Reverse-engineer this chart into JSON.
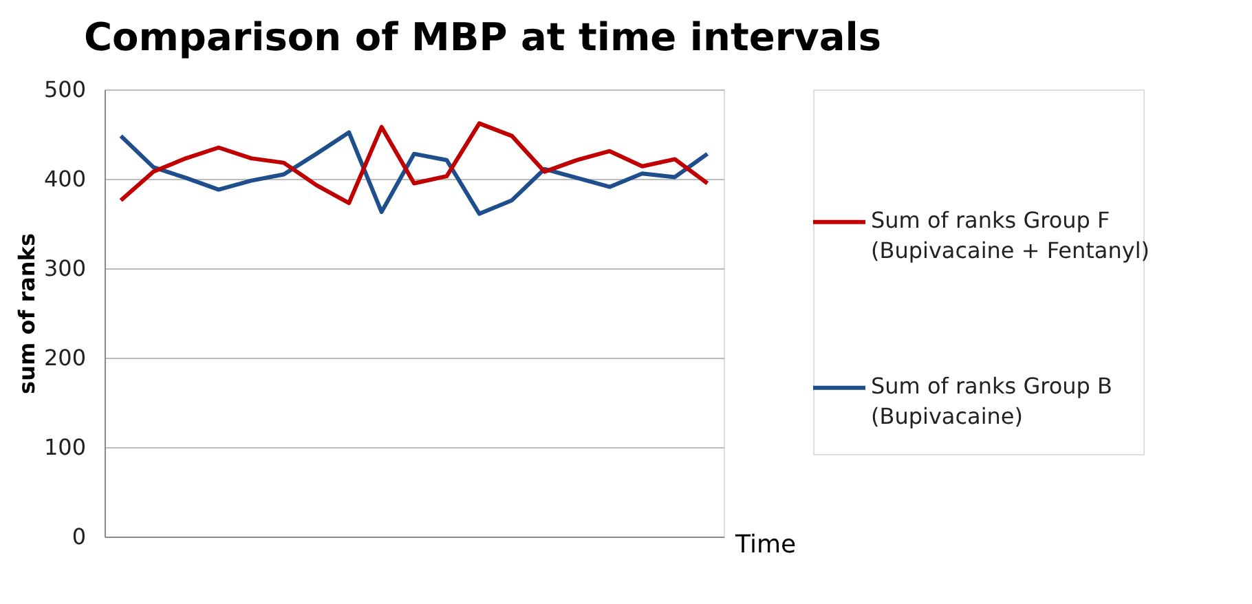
{
  "chart_data": {
    "type": "line",
    "title": "Comparison of MBP at time intervals",
    "xlabel": "Time",
    "ylabel": "sum of ranks",
    "categories": [
      null,
      null,
      null,
      null,
      null,
      null,
      null,
      null,
      null,
      null,
      null,
      null,
      null,
      null,
      null,
      null,
      null,
      null,
      null
    ],
    "series": [
      {
        "name": "Sum of ranks Group B (Bupivacaine)",
        "color": "#1f4e8c",
        "values": [
          448,
          413,
          401,
          388,
          398,
          405,
          428,
          452,
          363,
          428,
          421,
          361,
          376,
          411,
          401,
          391,
          406,
          402,
          428
        ]
      },
      {
        "name": "Sum of ranks Group F (Bupivacaine + Fentanyl)",
        "color": "#c00000",
        "values": [
          376,
          408,
          423,
          435,
          423,
          418,
          393,
          373,
          458,
          395,
          403,
          462,
          448,
          408,
          421,
          431,
          414,
          422,
          395
        ]
      }
    ],
    "ylim": [
      0,
      500
    ],
    "yticks": [
      0,
      100,
      200,
      300,
      400,
      500
    ],
    "grid": "y",
    "legend": "right",
    "marker": "none",
    "line_style": "solid"
  }
}
